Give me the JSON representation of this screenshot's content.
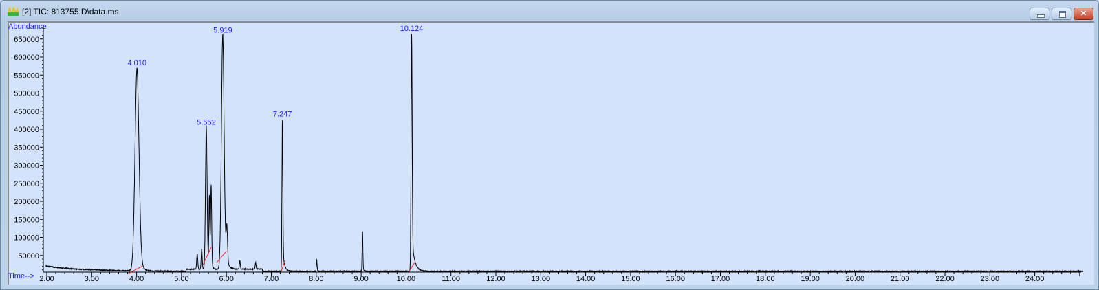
{
  "window": {
    "title": "[2] TIC: 813755.D\\data.ms",
    "buttons": {
      "minimize": "minimize",
      "maximize": "maximize",
      "close": "close"
    },
    "close_color": "#c4412a",
    "plot_background": "#d4e3fc"
  },
  "chart_data": {
    "type": "line",
    "ylabel": "Abundance",
    "xlabel": "Time-->",
    "xlim": [
      1.98,
      25.1
    ],
    "ylim": [
      0,
      690000
    ],
    "x_ticks": [
      "2.00",
      "3.00",
      "4.00",
      "5.00",
      "6.00",
      "7.00",
      "8.00",
      "9.00",
      "10.00",
      "11.00",
      "12.00",
      "13.00",
      "14.00",
      "15.00",
      "16.00",
      "17.00",
      "18.00",
      "19.00",
      "20.00",
      "21.00",
      "22.00",
      "23.00",
      "24.00"
    ],
    "y_ticks": [
      "50000",
      "100000",
      "150000",
      "200000",
      "250000",
      "300000",
      "350000",
      "400000",
      "450000",
      "500000",
      "550000",
      "600000",
      "650000"
    ],
    "grid": false,
    "trace_color": "#000000",
    "label_color": "#1a1aff",
    "integration_baseline_color": "#ff2020",
    "peaks": [
      {
        "rt": 4.01,
        "abundance": 570000,
        "label": "4.010"
      },
      {
        "rt": 5.35,
        "abundance": 50000,
        "label": ""
      },
      {
        "rt": 5.45,
        "abundance": 62000,
        "label": ""
      },
      {
        "rt": 5.552,
        "abundance": 405000,
        "label": "5.552"
      },
      {
        "rt": 5.62,
        "abundance": 205000,
        "label": ""
      },
      {
        "rt": 5.66,
        "abundance": 235000,
        "label": ""
      },
      {
        "rt": 5.919,
        "abundance": 660000,
        "label": "5.919"
      },
      {
        "rt": 6.01,
        "abundance": 110000,
        "label": ""
      },
      {
        "rt": 6.3,
        "abundance": 30000,
        "label": ""
      },
      {
        "rt": 6.65,
        "abundance": 25000,
        "label": ""
      },
      {
        "rt": 7.247,
        "abundance": 428000,
        "label": "7.247"
      },
      {
        "rt": 8.01,
        "abundance": 40000,
        "label": ""
      },
      {
        "rt": 9.03,
        "abundance": 120000,
        "label": ""
      },
      {
        "rt": 10.124,
        "abundance": 665000,
        "label": "10.124"
      }
    ],
    "integration_baselines": [
      {
        "from": [
          3.82,
          0
        ],
        "to": [
          4.15,
          22000
        ]
      },
      {
        "from": [
          5.48,
          25000
        ],
        "to": [
          5.66,
          72000
        ]
      },
      {
        "from": [
          5.78,
          30000
        ],
        "to": [
          6.0,
          62000
        ]
      },
      {
        "from": [
          7.22,
          4000
        ],
        "to": [
          7.3,
          36000
        ]
      },
      {
        "from": [
          10.06,
          4000
        ],
        "to": [
          10.2,
          32000
        ]
      }
    ]
  }
}
